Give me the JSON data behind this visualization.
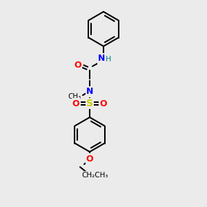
{
  "background_color": "#ebebeb",
  "bond_color": "#000000",
  "atom_colors": {
    "O": "#ff0000",
    "N": "#0000ff",
    "S": "#cccc00",
    "H": "#008080",
    "C": "#000000"
  },
  "figsize": [
    3.0,
    3.0
  ],
  "dpi": 100
}
